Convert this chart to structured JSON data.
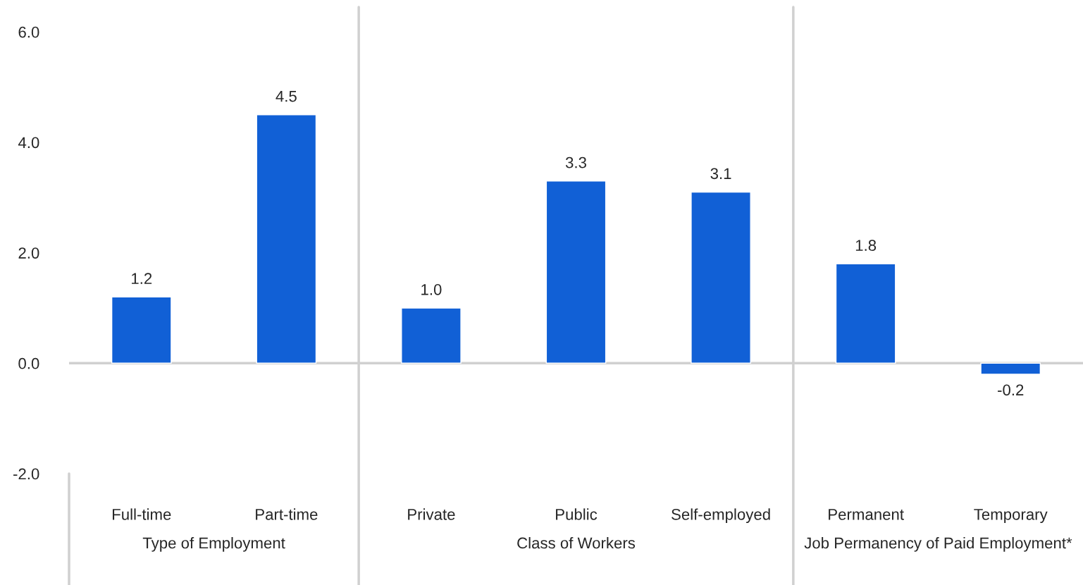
{
  "chart_data": {
    "type": "bar",
    "categories": [
      "Full-time",
      "Part-time",
      "Private",
      "Public",
      "Self-employed",
      "Permanent",
      "Temporary"
    ],
    "values": [
      1.2,
      4.5,
      1.0,
      3.3,
      3.1,
      1.8,
      -0.2
    ],
    "color": "#1160d6",
    "ylim": [
      -2.0,
      6.45
    ],
    "yticks": [
      {
        "value": -2,
        "label": "-2.0"
      },
      {
        "value": 0,
        "label": "0.0"
      },
      {
        "value": 2,
        "label": "2.0"
      },
      {
        "value": 4,
        "label": "4.0"
      },
      {
        "value": 6,
        "label": "6.0"
      }
    ],
    "value_labels": [
      "1.2",
      "4.5",
      "1.0",
      "3.3",
      "3.1",
      "1.8",
      "-0.2"
    ],
    "annotations": [
      "Type of Employment",
      "Class of Workers",
      "Job Permanency of Paid Employment*"
    ]
  }
}
